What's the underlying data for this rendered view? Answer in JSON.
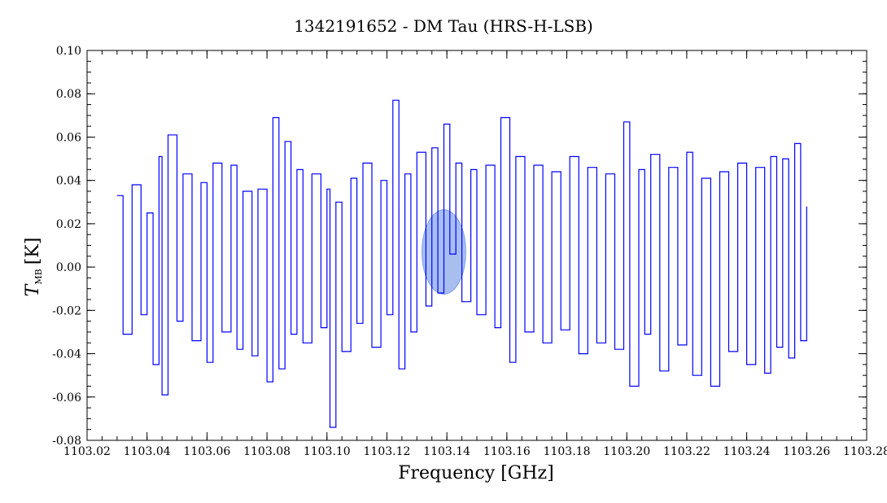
{
  "chart_data": {
    "type": "line",
    "title": "1342191652 - DM Tau (HRS-H-LSB)",
    "xlabel": "Frequency [GHz]",
    "ylabel": {
      "main": "T",
      "sub": "MB",
      "unit": "[K]"
    },
    "xlim": [
      1103.02,
      1103.28
    ],
    "ylim": [
      -0.08,
      0.1
    ],
    "x_ticks": [
      "1103.02",
      "1103.04",
      "1103.06",
      "1103.08",
      "1103.10",
      "1103.12",
      "1103.14",
      "1103.16",
      "1103.18",
      "1103.20",
      "1103.22",
      "1103.24",
      "1103.26",
      "1103.28"
    ],
    "y_ticks": [
      "-0.08",
      "-0.06",
      "-0.04",
      "-0.02",
      "0.00",
      "0.02",
      "0.04",
      "0.06",
      "0.08",
      "0.10"
    ],
    "grid": false,
    "series": [
      {
        "color": "#0000ff",
        "x": [
          1103.03,
          1103.032,
          1103.035,
          1103.038,
          1103.04,
          1103.042,
          1103.044,
          1103.045,
          1103.047,
          1103.05,
          1103.052,
          1103.055,
          1103.058,
          1103.06,
          1103.062,
          1103.065,
          1103.068,
          1103.07,
          1103.072,
          1103.075,
          1103.077,
          1103.08,
          1103.082,
          1103.084,
          1103.086,
          1103.088,
          1103.09,
          1103.092,
          1103.095,
          1103.098,
          1103.1,
          1103.101,
          1103.103,
          1103.105,
          1103.108,
          1103.11,
          1103.112,
          1103.115,
          1103.118,
          1103.12,
          1103.122,
          1103.124,
          1103.126,
          1103.128,
          1103.13,
          1103.133,
          1103.135,
          1103.137,
          1103.139,
          1103.141,
          1103.143,
          1103.145,
          1103.148,
          1103.15,
          1103.153,
          1103.156,
          1103.158,
          1103.161,
          1103.163,
          1103.166,
          1103.169,
          1103.172,
          1103.175,
          1103.178,
          1103.181,
          1103.184,
          1103.187,
          1103.19,
          1103.193,
          1103.196,
          1103.199,
          1103.201,
          1103.204,
          1103.206,
          1103.208,
          1103.211,
          1103.214,
          1103.217,
          1103.22,
          1103.222,
          1103.225,
          1103.228,
          1103.231,
          1103.234,
          1103.237,
          1103.24,
          1103.243,
          1103.246,
          1103.248,
          1103.25,
          1103.252,
          1103.254,
          1103.256,
          1103.258,
          1103.26
        ],
        "y": [
          0.033,
          -0.031,
          0.038,
          -0.022,
          0.025,
          -0.045,
          0.051,
          -0.059,
          0.061,
          -0.025,
          0.043,
          -0.034,
          0.039,
          -0.044,
          0.048,
          -0.03,
          0.047,
          -0.038,
          0.035,
          -0.041,
          0.036,
          -0.053,
          0.069,
          -0.047,
          0.058,
          -0.031,
          0.045,
          -0.035,
          0.043,
          -0.028,
          0.036,
          -0.074,
          0.03,
          -0.039,
          0.041,
          -0.026,
          0.048,
          -0.037,
          0.04,
          -0.022,
          0.077,
          -0.047,
          0.043,
          -0.03,
          0.053,
          -0.018,
          0.055,
          -0.012,
          0.066,
          0.006,
          0.048,
          -0.016,
          0.045,
          -0.022,
          0.047,
          -0.028,
          0.069,
          -0.044,
          0.051,
          -0.03,
          0.047,
          -0.035,
          0.044,
          -0.029,
          0.051,
          -0.04,
          0.046,
          -0.035,
          0.043,
          -0.038,
          0.067,
          -0.055,
          0.045,
          -0.031,
          0.052,
          -0.048,
          0.046,
          -0.036,
          0.053,
          -0.05,
          0.041,
          -0.055,
          0.044,
          -0.039,
          0.048,
          -0.045,
          0.046,
          -0.049,
          0.051,
          -0.037,
          0.05,
          -0.042,
          0.057,
          -0.034,
          0.028
        ]
      }
    ],
    "annotation": {
      "type": "highlight-ellipse",
      "color": "#3b6fd9",
      "x": 1103.139,
      "y": 0.007
    }
  }
}
